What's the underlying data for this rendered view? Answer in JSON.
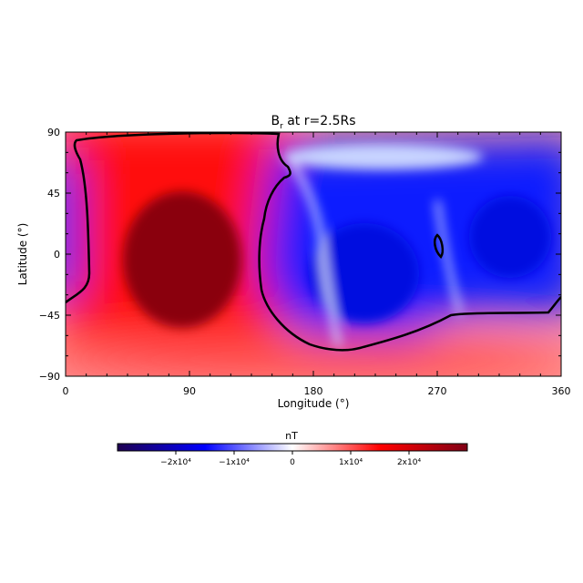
{
  "chart_data": {
    "type": "heatmap",
    "title": "B",
    "title_subscript": "r",
    "title_suffix": " at r=2.5Rs",
    "xlabel": "Longitude (°)",
    "ylabel": "Latitude (°)",
    "xlim": [
      0,
      360
    ],
    "ylim": [
      -90,
      90
    ],
    "xticks": [
      0,
      90,
      180,
      270,
      360
    ],
    "yticks": [
      -90,
      -45,
      0,
      45,
      90
    ],
    "colorbar": {
      "label": "nT",
      "range": [
        -30000,
        30000
      ],
      "ticks": [
        {
          "value": -20000,
          "label": "−2x10⁴"
        },
        {
          "value": -10000,
          "label": "−1x10⁴"
        },
        {
          "value": 0,
          "label": "0"
        },
        {
          "value": 10000,
          "label": "1x10⁴"
        },
        {
          "value": 20000,
          "label": "2x10⁴"
        }
      ],
      "colors": [
        "#1e0050",
        "#0000ff",
        "#ffffff",
        "#ff0000",
        "#800015"
      ]
    },
    "features": [
      {
        "lon": 68,
        "lat": 0,
        "value": 27000
      },
      {
        "lon": 10,
        "lat": 8,
        "value": -17000
      },
      {
        "lon": 210,
        "lat": -15,
        "value": -16000
      },
      {
        "lon": 335,
        "lat": 12,
        "value": -17000
      },
      {
        "lon": 260,
        "lat": 25,
        "value": -12000
      },
      {
        "lon": 180,
        "lat": -85,
        "value": 8000
      }
    ],
    "contour_level": 0
  }
}
